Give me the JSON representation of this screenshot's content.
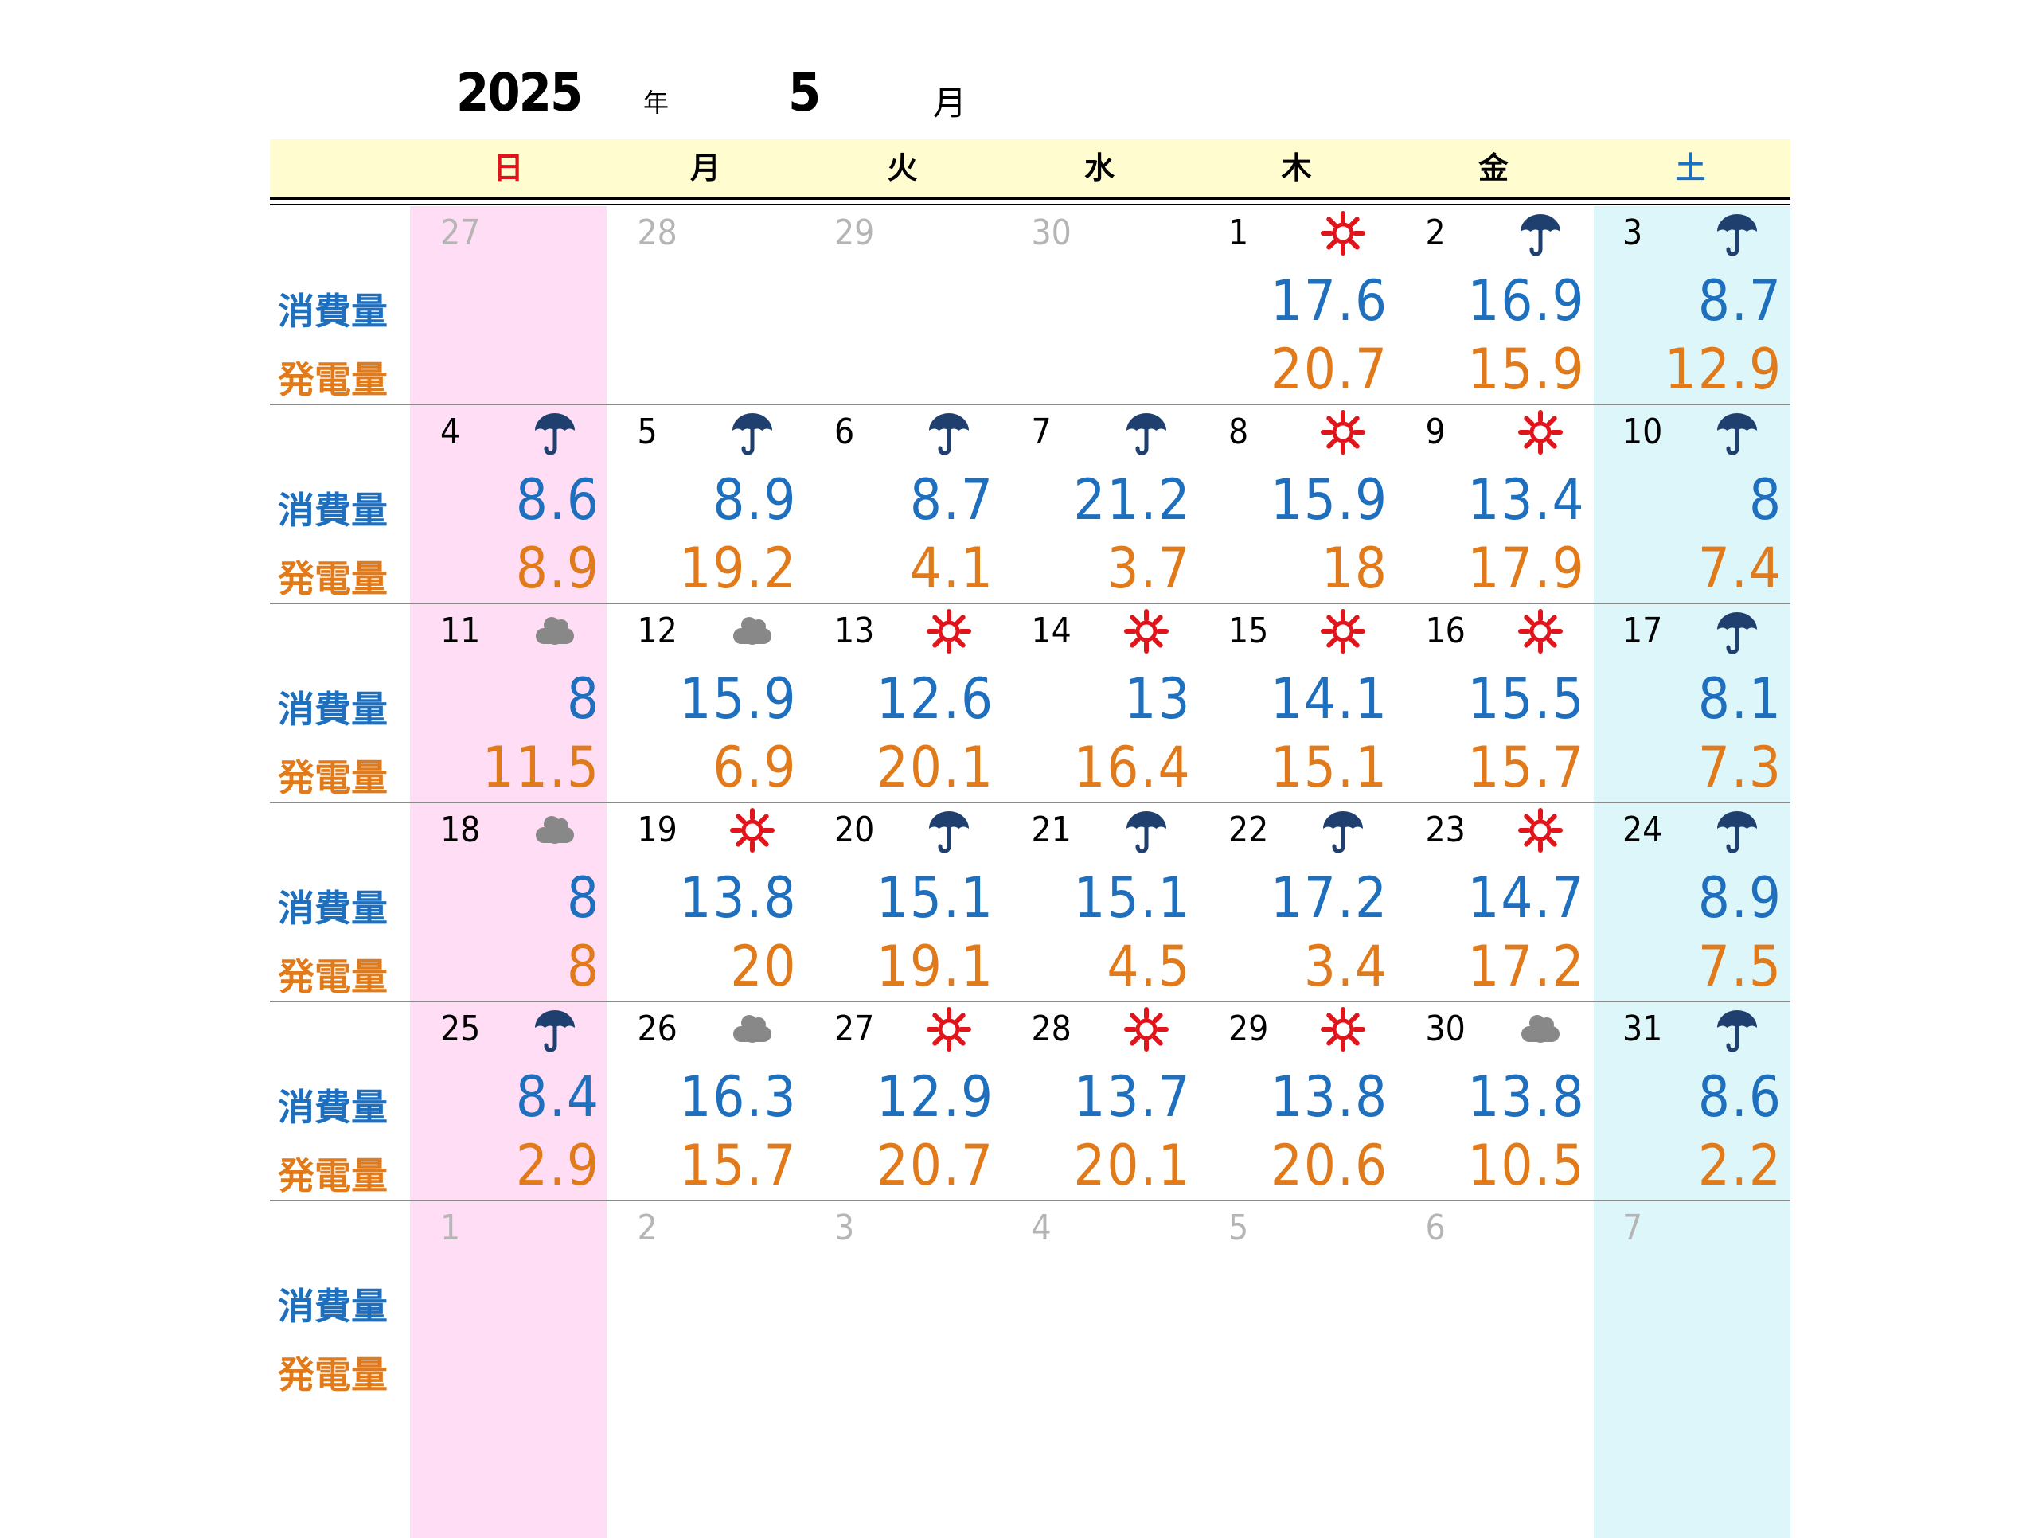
{
  "header": {
    "year": "2025",
    "year_suffix": "年",
    "month": "5",
    "month_suffix": "月"
  },
  "weekdays": [
    {
      "label": "日",
      "color": "#E0141B"
    },
    {
      "label": "月",
      "color": "#000000"
    },
    {
      "label": "火",
      "color": "#000000"
    },
    {
      "label": "水",
      "color": "#000000"
    },
    {
      "label": "木",
      "color": "#000000"
    },
    {
      "label": "金",
      "color": "#000000"
    },
    {
      "label": "土",
      "color": "#1F6FBF"
    }
  ],
  "row_labels": {
    "consumption": "消費量",
    "generation": "発電量"
  },
  "colors": {
    "consumption": "#1F6FBF",
    "generation": "#E07A1A",
    "sunday_bg": "#FFDDF4",
    "saturday_bg": "#DDF6FA",
    "header_bg": "#FFFDD0"
  },
  "weeks": [
    [
      {
        "day": "27",
        "other": true
      },
      {
        "day": "28",
        "other": true
      },
      {
        "day": "29",
        "other": true
      },
      {
        "day": "30",
        "other": true
      },
      {
        "day": "1",
        "weather": "sun-icon",
        "consumption": "17.6",
        "generation": "20.7"
      },
      {
        "day": "2",
        "weather": "umbrella-icon",
        "consumption": "16.9",
        "generation": "15.9"
      },
      {
        "day": "3",
        "weather": "umbrella-icon",
        "consumption": "8.7",
        "generation": "12.9"
      }
    ],
    [
      {
        "day": "4",
        "weather": "umbrella-icon",
        "consumption": "8.6",
        "generation": "8.9"
      },
      {
        "day": "5",
        "weather": "umbrella-icon",
        "consumption": "8.9",
        "generation": "19.2"
      },
      {
        "day": "6",
        "weather": "umbrella-icon",
        "consumption": "8.7",
        "generation": "4.1"
      },
      {
        "day": "7",
        "weather": "umbrella-icon",
        "consumption": "21.2",
        "generation": "3.7"
      },
      {
        "day": "8",
        "weather": "sun-icon",
        "consumption": "15.9",
        "generation": "18"
      },
      {
        "day": "9",
        "weather": "sun-icon",
        "consumption": "13.4",
        "generation": "17.9"
      },
      {
        "day": "10",
        "weather": "umbrella-icon",
        "consumption": "8",
        "generation": "7.4"
      }
    ],
    [
      {
        "day": "11",
        "weather": "cloud-icon",
        "consumption": "8",
        "generation": "11.5"
      },
      {
        "day": "12",
        "weather": "cloud-icon",
        "consumption": "15.9",
        "generation": "6.9"
      },
      {
        "day": "13",
        "weather": "sun-icon",
        "consumption": "12.6",
        "generation": "20.1"
      },
      {
        "day": "14",
        "weather": "sun-icon",
        "consumption": "13",
        "generation": "16.4"
      },
      {
        "day": "15",
        "weather": "sun-icon",
        "consumption": "14.1",
        "generation": "15.1"
      },
      {
        "day": "16",
        "weather": "sun-icon",
        "consumption": "15.5",
        "generation": "15.7"
      },
      {
        "day": "17",
        "weather": "umbrella-icon",
        "consumption": "8.1",
        "generation": "7.3"
      }
    ],
    [
      {
        "day": "18",
        "weather": "cloud-icon",
        "consumption": "8",
        "generation": "8"
      },
      {
        "day": "19",
        "weather": "sun-icon",
        "consumption": "13.8",
        "generation": "20"
      },
      {
        "day": "20",
        "weather": "umbrella-icon",
        "consumption": "15.1",
        "generation": "19.1"
      },
      {
        "day": "21",
        "weather": "umbrella-icon",
        "consumption": "15.1",
        "generation": "4.5"
      },
      {
        "day": "22",
        "weather": "umbrella-icon",
        "consumption": "17.2",
        "generation": "3.4"
      },
      {
        "day": "23",
        "weather": "sun-icon",
        "consumption": "14.7",
        "generation": "17.2"
      },
      {
        "day": "24",
        "weather": "umbrella-icon",
        "consumption": "8.9",
        "generation": "7.5"
      }
    ],
    [
      {
        "day": "25",
        "weather": "umbrella-icon",
        "consumption": "8.4",
        "generation": "2.9"
      },
      {
        "day": "26",
        "weather": "cloud-icon",
        "consumption": "16.3",
        "generation": "15.7"
      },
      {
        "day": "27",
        "weather": "sun-icon",
        "consumption": "12.9",
        "generation": "20.7"
      },
      {
        "day": "28",
        "weather": "sun-icon",
        "consumption": "13.7",
        "generation": "20.1"
      },
      {
        "day": "29",
        "weather": "sun-icon",
        "consumption": "13.8",
        "generation": "20.6"
      },
      {
        "day": "30",
        "weather": "cloud-icon",
        "consumption": "13.8",
        "generation": "10.5"
      },
      {
        "day": "31",
        "weather": "umbrella-icon",
        "consumption": "8.6",
        "generation": "2.2"
      }
    ],
    [
      {
        "day": "1",
        "other": true
      },
      {
        "day": "2",
        "other": true
      },
      {
        "day": "3",
        "other": true
      },
      {
        "day": "4",
        "other": true
      },
      {
        "day": "5",
        "other": true
      },
      {
        "day": "6",
        "other": true
      },
      {
        "day": "7",
        "other": true
      }
    ]
  ]
}
